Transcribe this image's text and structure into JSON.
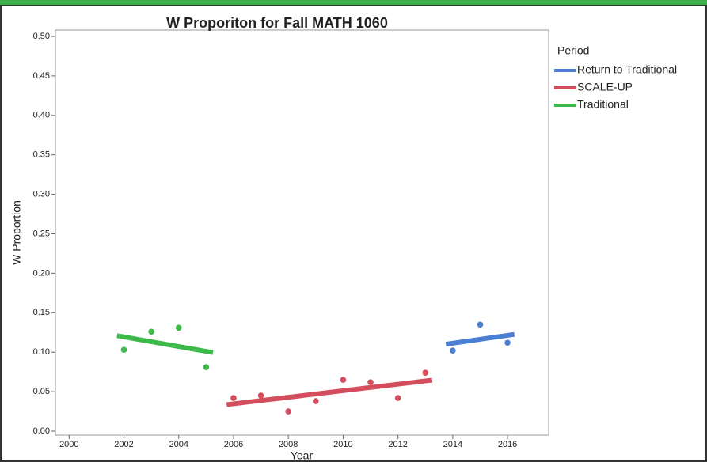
{
  "chart_data": {
    "type": "scatter",
    "title": "W Proporiton for Fall MATH 1060",
    "x_label": "Year",
    "y_label": "W Proportion",
    "legend_title": "Period",
    "legend": "right",
    "xlim": [
      1999.5,
      2017.5
    ],
    "xticks": [
      2000,
      2002,
      2004,
      2006,
      2008,
      2010,
      2012,
      2014,
      2016
    ],
    "ylim": [
      -0.005,
      0.508
    ],
    "yticks": [
      {
        "value": 0,
        "label": "0.00"
      },
      {
        "value": 0.05,
        "label": "0.05"
      },
      {
        "value": 0.1,
        "label": "0.10"
      },
      {
        "value": 0.15,
        "label": "0.15"
      },
      {
        "value": 0.2,
        "label": "0.20"
      },
      {
        "value": 0.25,
        "label": "0.25"
      },
      {
        "value": 0.3,
        "label": "0.30"
      },
      {
        "value": 0.35,
        "label": "0.35"
      },
      {
        "value": 0.4,
        "label": "0.40"
      },
      {
        "value": 0.45,
        "label": "0.45"
      },
      {
        "value": 0.5,
        "label": "0.50"
      }
    ],
    "fit_lines": true,
    "series": [
      {
        "name": "Return to Traditional",
        "color": "#4a7fd4",
        "x": [
          2014,
          2015,
          2016
        ],
        "values": [
          0.102,
          0.135,
          0.112
        ]
      },
      {
        "name": "SCALE-UP",
        "color": "#d44d5c",
        "x": [
          2006,
          2007,
          2008,
          2009,
          2010,
          2011,
          2012,
          2013
        ],
        "values": [
          0.042,
          0.045,
          0.025,
          0.038,
          0.065,
          0.062,
          0.042,
          0.074
        ]
      },
      {
        "name": "Traditional",
        "color": "#3cb94a",
        "x": [
          2002,
          2003,
          2004,
          2005
        ],
        "values": [
          0.103,
          0.126,
          0.131,
          0.081
        ]
      }
    ]
  }
}
